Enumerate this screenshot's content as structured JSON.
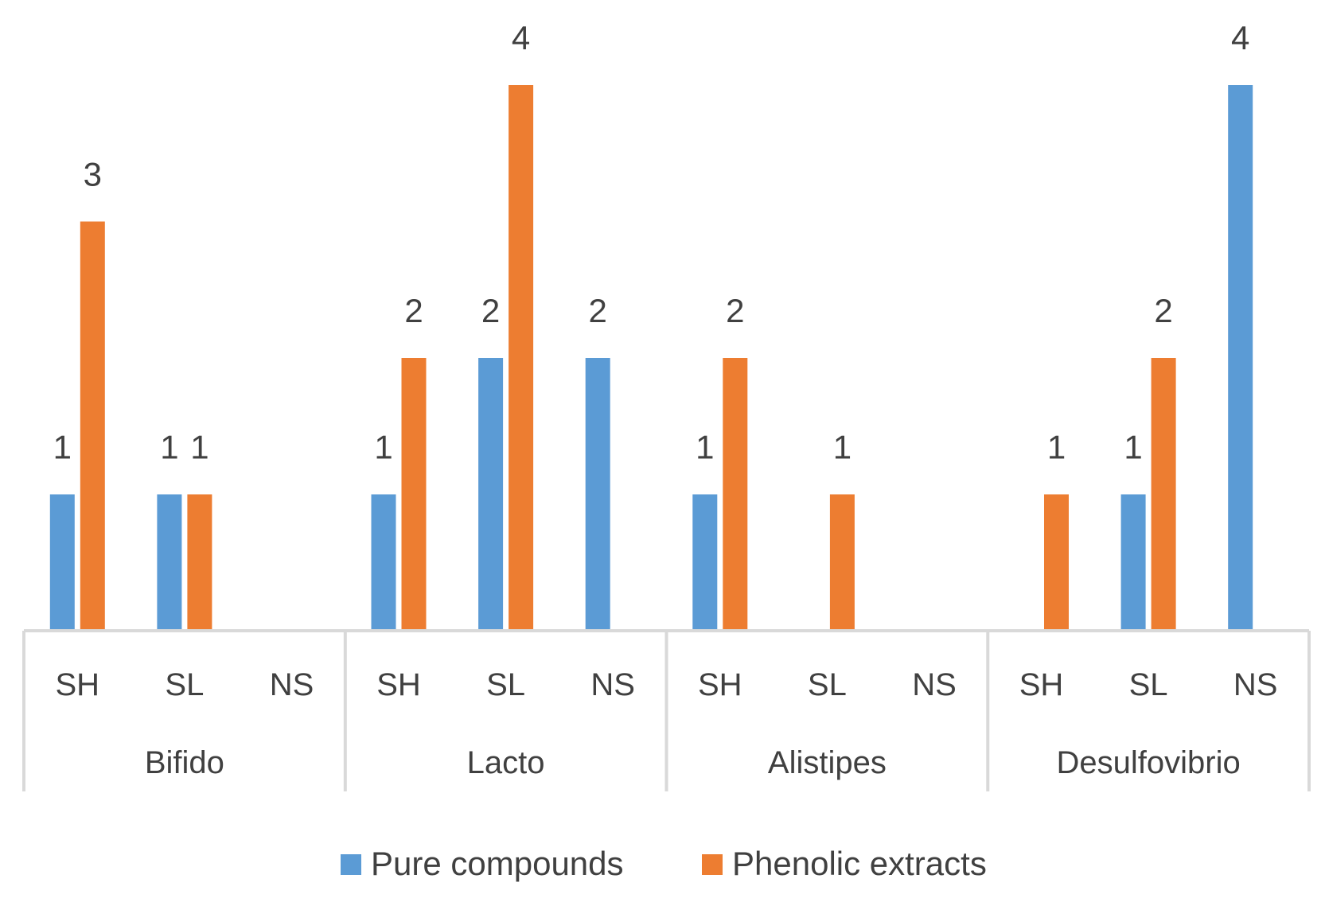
{
  "chart_data": {
    "type": "bar",
    "groups": [
      {
        "name": "Bifido",
        "subcategories": [
          "SH",
          "SL",
          "NS"
        ]
      },
      {
        "name": "Lacto",
        "subcategories": [
          "SH",
          "SL",
          "NS"
        ]
      },
      {
        "name": "Alistipes",
        "subcategories": [
          "SH",
          "SL",
          "NS"
        ]
      },
      {
        "name": "Desulfovibrio",
        "subcategories": [
          "SH",
          "SL",
          "NS"
        ]
      }
    ],
    "series": [
      {
        "name": "Pure compounds",
        "color": "#5B9BD5",
        "values": [
          1,
          1,
          null,
          1,
          2,
          2,
          1,
          null,
          null,
          null,
          1,
          4
        ]
      },
      {
        "name": "Phenolic extracts",
        "color": "#ED7D31",
        "values": [
          3,
          1,
          null,
          2,
          4,
          null,
          2,
          1,
          null,
          1,
          2,
          null
        ]
      }
    ],
    "ylim": [
      0,
      4
    ],
    "data_labels": true,
    "grid": false,
    "legend_position": "bottom",
    "axis_color": "#D9D9D9"
  }
}
